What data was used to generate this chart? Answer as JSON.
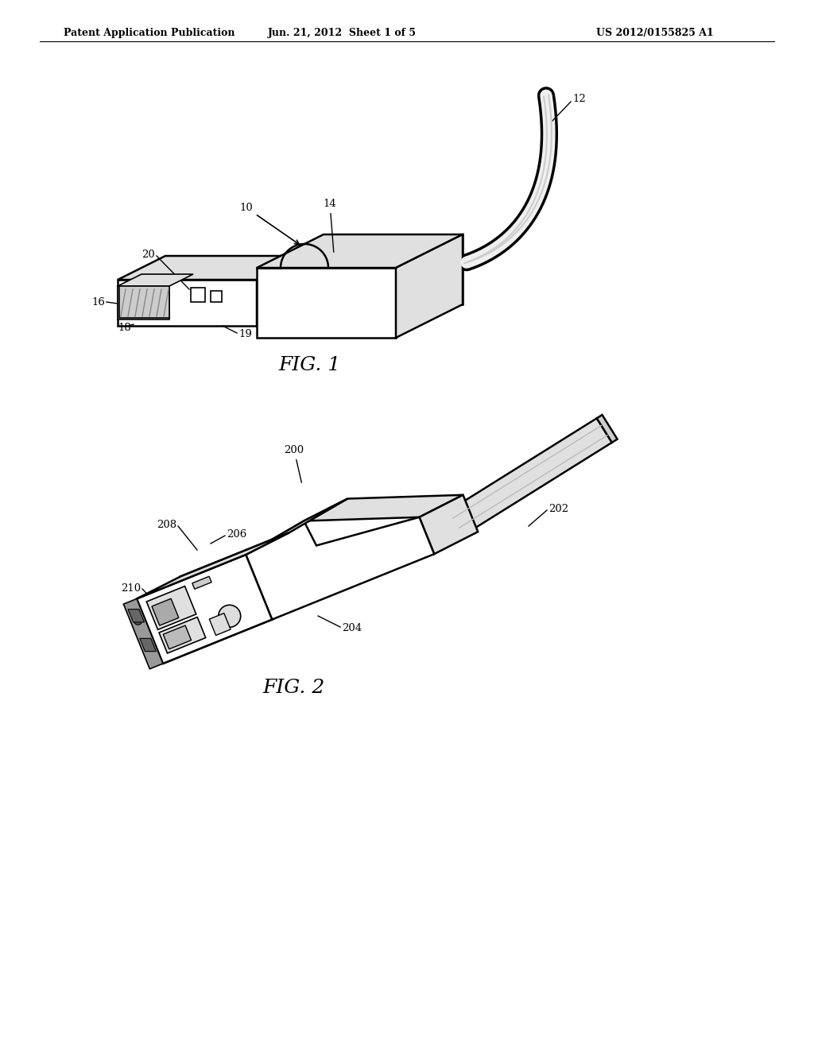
{
  "bg_color": "#ffffff",
  "line_color": "#000000",
  "header_left": "Patent Application Publication",
  "header_center": "Jun. 21, 2012  Sheet 1 of 5",
  "header_right": "US 2012/0155825 A1",
  "fig1_label": "FIG. 1",
  "fig2_label": "FIG. 2",
  "face_color": "#ffffff",
  "shade_light": "#e8e8e8",
  "shade_mid": "#d0d0d0",
  "shade_dark": "#aaaaaa",
  "inner_dark": "#888888"
}
